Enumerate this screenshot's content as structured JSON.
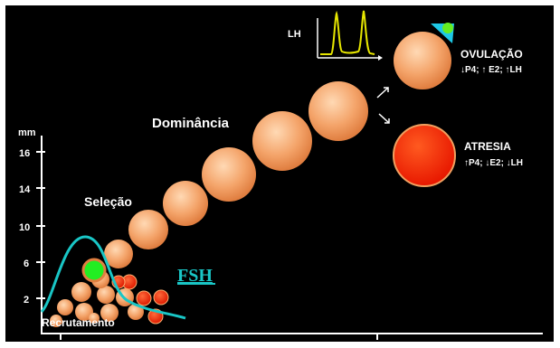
{
  "axis": {
    "unit_label": "mm",
    "ticks": [
      "16",
      "14",
      "10",
      "6",
      "2"
    ]
  },
  "stages": {
    "recruitment": "Recrutamento",
    "selection": "Seleção",
    "dominance": "Dominância",
    "ovulation": "OVULAÇÃO",
    "ovulation_hormones": "↓P4; ↑ E2; ↑LH",
    "atresia": "ATRESIA",
    "atresia_hormones": "↑P4; ↓E2; ↓LH"
  },
  "hormones": {
    "fsh_label": "FSH",
    "lh_label": "LH"
  },
  "colors": {
    "background": "#000000",
    "follicle_fill": "#f2a066",
    "follicle_highlight": "#ffd7b0",
    "atretic_fill": "#ff2a00",
    "selected_follicle": "#22ee22",
    "fsh_curve": "#19c6c6",
    "lh_curve": "#e6e600",
    "oocyte_marker": "#1ec8e6",
    "text": "#ffffff"
  }
}
